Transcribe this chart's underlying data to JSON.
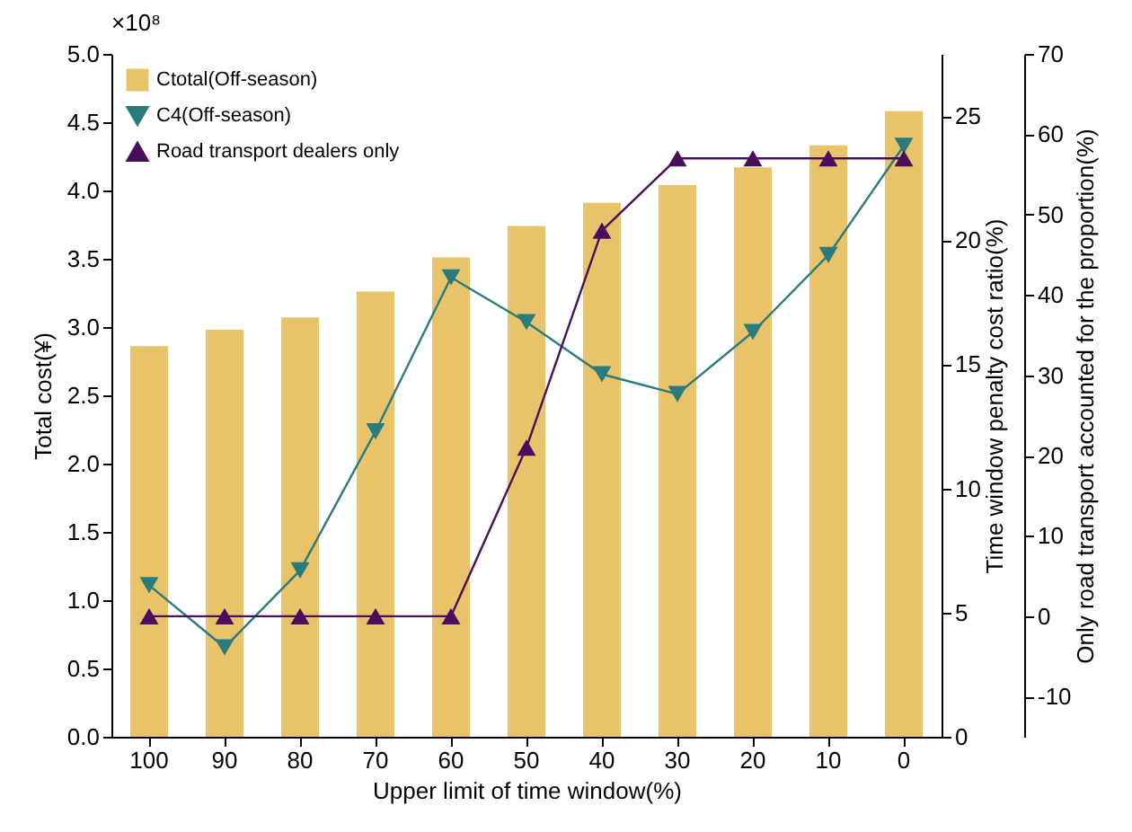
{
  "chart_data": {
    "type": "bar",
    "xlabel": "Upper limit of time window(%)",
    "ylabel": "Total cost(¥)",
    "y2label": "Time window penalty cost ratio(%)",
    "y3label": "Only road transport accounted for the proportion(%)",
    "annotations": [
      "×10⁸"
    ],
    "categories": [
      "100",
      "90",
      "80",
      "70",
      "60",
      "50",
      "40",
      "30",
      "20",
      "10",
      "0"
    ],
    "series": [
      {
        "name": "Ctotal(Off-season)",
        "color": "#e8c36a",
        "values": [
          2.86,
          2.98,
          3.07,
          3.26,
          3.51,
          3.74,
          3.91,
          4.04,
          4.17,
          4.33,
          4.58
        ]
      },
      {
        "name": "C4(Off-season)",
        "type": "line",
        "axis": "y2",
        "color": "#2a7b7c",
        "marker": "triangle-down",
        "values": [
          6.1,
          3.6,
          6.7,
          12.3,
          18.5,
          16.7,
          14.6,
          13.8,
          16.3,
          19.4,
          23.8
        ]
      },
      {
        "name": "Road transport dealers only",
        "type": "line",
        "axis": "y3",
        "color": "#4a0f5c",
        "marker": "triangle",
        "values": [
          0,
          0,
          0,
          0,
          0,
          21,
          48,
          57,
          57,
          57,
          57
        ]
      }
    ],
    "ylim": [
      0,
      5
    ],
    "yticks": [
      {
        "value": 0,
        "label": "0.0"
      },
      {
        "value": 0.5,
        "label": "0.5"
      },
      {
        "value": 1,
        "label": "1.0"
      },
      {
        "value": 1.5,
        "label": "1.5"
      },
      {
        "value": 2,
        "label": "2.0"
      },
      {
        "value": 2.5,
        "label": "2.5"
      },
      {
        "value": 3,
        "label": "3.0"
      },
      {
        "value": 3.5,
        "label": "3.5"
      },
      {
        "value": 4,
        "label": "4.0"
      },
      {
        "value": 4.5,
        "label": "4.5"
      },
      {
        "value": 5,
        "label": "5.0"
      }
    ],
    "y2lim": [
      0,
      27.5
    ],
    "y2ticks": [
      0,
      5,
      10,
      15,
      20,
      25
    ],
    "y3lim": [
      -15,
      70
    ],
    "y3ticks": [
      -10,
      0,
      10,
      20,
      30,
      40,
      50,
      60,
      70
    ],
    "legend": "top left",
    "grid": false
  }
}
